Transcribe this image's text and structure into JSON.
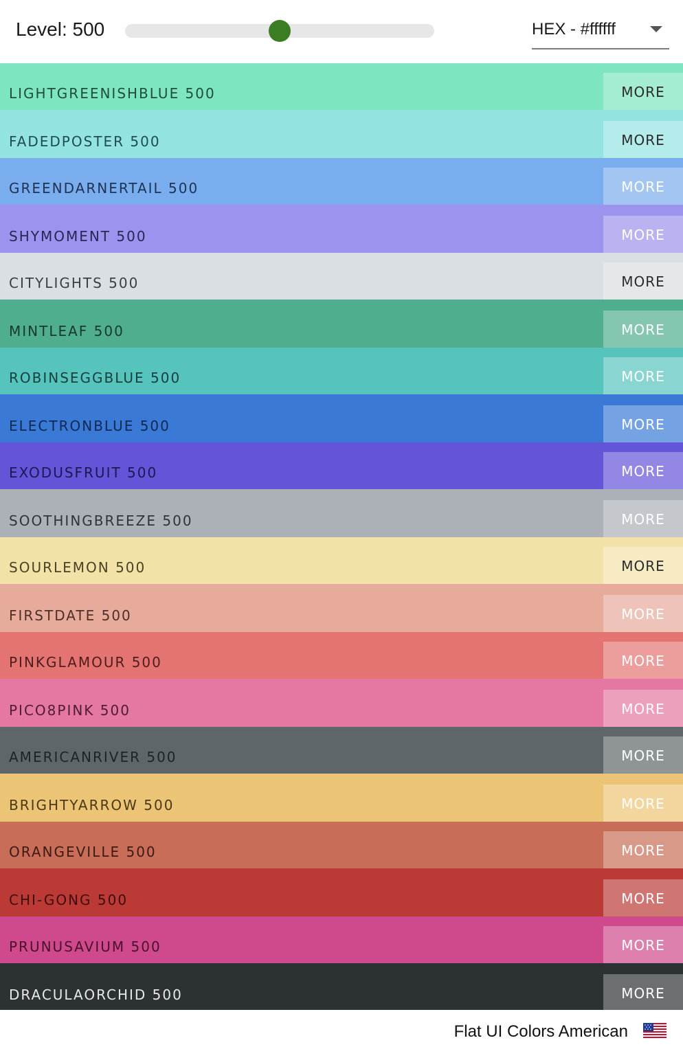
{
  "toolbar": {
    "level_label": "Level: 500",
    "level_value": 500,
    "level_fraction": 0.5,
    "slider_color": "#3b7d23",
    "format_value": "HEX - #ffffff"
  },
  "colors": [
    {
      "name": "LIGHTGREENISHBLUE 500",
      "hex": "#7ee6be",
      "text_color": "#1e4d3d",
      "more_label": "MORE",
      "more_color": "#2a2a2a"
    },
    {
      "name": "FADEDPOSTER 500",
      "hex": "#94e3e3",
      "text_color": "#1f4c4d",
      "more_label": "MORE",
      "more_color": "#2a2a2a"
    },
    {
      "name": "GREENDARNERTAIL 500",
      "hex": "#7aaded",
      "text_color": "#1d3354",
      "more_label": "MORE",
      "more_color": "#ffffff"
    },
    {
      "name": "SHYMOMENT 500",
      "hex": "#9b93ed",
      "text_color": "#2a2556",
      "more_label": "MORE",
      "more_color": "#ffffff"
    },
    {
      "name": "CITYLIGHTS 500",
      "hex": "#dadfe3",
      "text_color": "#3c3f42",
      "more_label": "MORE",
      "more_color": "#2a2a2a"
    },
    {
      "name": "MINTLEAF 500",
      "hex": "#4fae8e",
      "text_color": "#163a2d",
      "more_label": "MORE",
      "more_color": "#ffffff"
    },
    {
      "name": "ROBINSEGGBLUE 500",
      "hex": "#56c3bd",
      "text_color": "#15403d",
      "more_label": "MORE",
      "more_color": "#ffffff"
    },
    {
      "name": "ELECTRONBLUE 500",
      "hex": "#3a7ad6",
      "text_color": "#0f2a52",
      "more_label": "MORE",
      "more_color": "#ffffff"
    },
    {
      "name": "EXODUSFRUIT 500",
      "hex": "#6354d8",
      "text_color": "#1e1752",
      "more_label": "MORE",
      "more_color": "#ffffff"
    },
    {
      "name": "SOOTHINGBREEZE 500",
      "hex": "#abb1b7",
      "text_color": "#2f3438",
      "more_label": "MORE",
      "more_color": "#ffffff"
    },
    {
      "name": "SOURLEMON 500",
      "hex": "#f3e2a8",
      "text_color": "#4a4225",
      "more_label": "MORE",
      "more_color": "#2a2a2a"
    },
    {
      "name": "FIRSTDATE 500",
      "hex": "#e7ab9c",
      "text_color": "#4f2e26",
      "more_label": "MORE",
      "more_color": "#ffffff"
    },
    {
      "name": "PINKGLAMOUR 500",
      "hex": "#e47472",
      "text_color": "#4d1d1c",
      "more_label": "MORE",
      "more_color": "#ffffff"
    },
    {
      "name": "PICO8PINK 500",
      "hex": "#e577a3",
      "text_color": "#4f1d31",
      "more_label": "MORE",
      "more_color": "#ffffff"
    },
    {
      "name": "AMERICANRIVER 500",
      "hex": "#5f6669",
      "text_color": "#1f2325",
      "more_label": "MORE",
      "more_color": "#ffffff"
    },
    {
      "name": "BRIGHTYARROW 500",
      "hex": "#ecc475",
      "text_color": "#4a3914",
      "more_label": "MORE",
      "more_color": "#ffffff"
    },
    {
      "name": "ORANGEVILLE 500",
      "hex": "#c86d57",
      "text_color": "#3d1a12",
      "more_label": "MORE",
      "more_color": "#ffffff"
    },
    {
      "name": "CHI-GONG 500",
      "hex": "#bb3a36",
      "text_color": "#3d0e0c",
      "more_label": "MORE",
      "more_color": "#ffffff"
    },
    {
      "name": "PRUNUSAVIUM 500",
      "hex": "#cf4a8c",
      "text_color": "#4a102d",
      "more_label": "MORE",
      "more_color": "#ffffff"
    },
    {
      "name": "DRACULAORCHID 500",
      "hex": "#2c3134",
      "text_color": "#e8e8e8",
      "more_label": "MORE",
      "more_color": "#ffffff"
    }
  ],
  "footer": {
    "palette_label": "Flat UI Colors American",
    "flag_icon": "us-flag-icon"
  }
}
